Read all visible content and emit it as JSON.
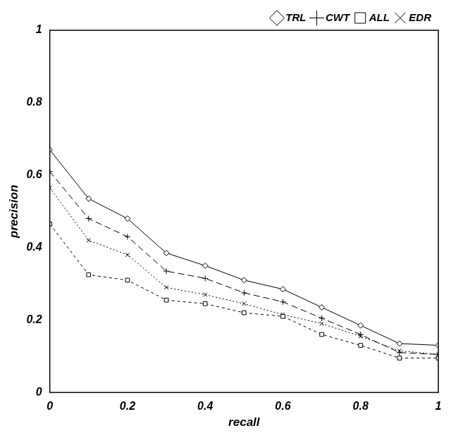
{
  "chart_data": {
    "type": "line",
    "x_label": "recall",
    "y_label": "precision",
    "x": [
      0,
      0.1,
      0.2,
      0.3,
      0.4,
      0.5,
      0.6,
      0.7,
      0.8,
      0.9,
      1
    ],
    "xlim": [
      0,
      1
    ],
    "xticks": [
      0,
      0.2,
      0.4,
      0.6,
      0.8,
      1
    ],
    "ylim": [
      0,
      1
    ],
    "yticks": [
      0,
      0.2,
      0.4,
      0.6,
      0.8,
      1
    ],
    "grid": false,
    "legend": "upper right",
    "series": [
      {
        "name": "TRL",
        "color": "#000000",
        "marker": "diamond",
        "line_style": "solid",
        "values": [
          0.67,
          0.535,
          0.48,
          0.385,
          0.35,
          0.31,
          0.285,
          0.235,
          0.185,
          0.135,
          0.13
        ]
      },
      {
        "name": "CWT",
        "color": "#000000",
        "marker": "plus",
        "line_style": "dashed",
        "values": [
          0.61,
          0.48,
          0.43,
          0.335,
          0.315,
          0.275,
          0.25,
          0.205,
          0.16,
          0.11,
          0.105
        ]
      },
      {
        "name": "ALL",
        "color": "#000000",
        "marker": "square",
        "line_style": "short-dashed",
        "values": [
          0.465,
          0.325,
          0.31,
          0.255,
          0.245,
          0.22,
          0.21,
          0.16,
          0.13,
          0.095,
          0.095
        ]
      },
      {
        "name": "EDR",
        "color": "#000000",
        "marker": "x",
        "line_style": "dotted",
        "values": [
          0.565,
          0.42,
          0.38,
          0.29,
          0.27,
          0.245,
          0.215,
          0.19,
          0.155,
          0.115,
          0.105
        ]
      }
    ]
  }
}
